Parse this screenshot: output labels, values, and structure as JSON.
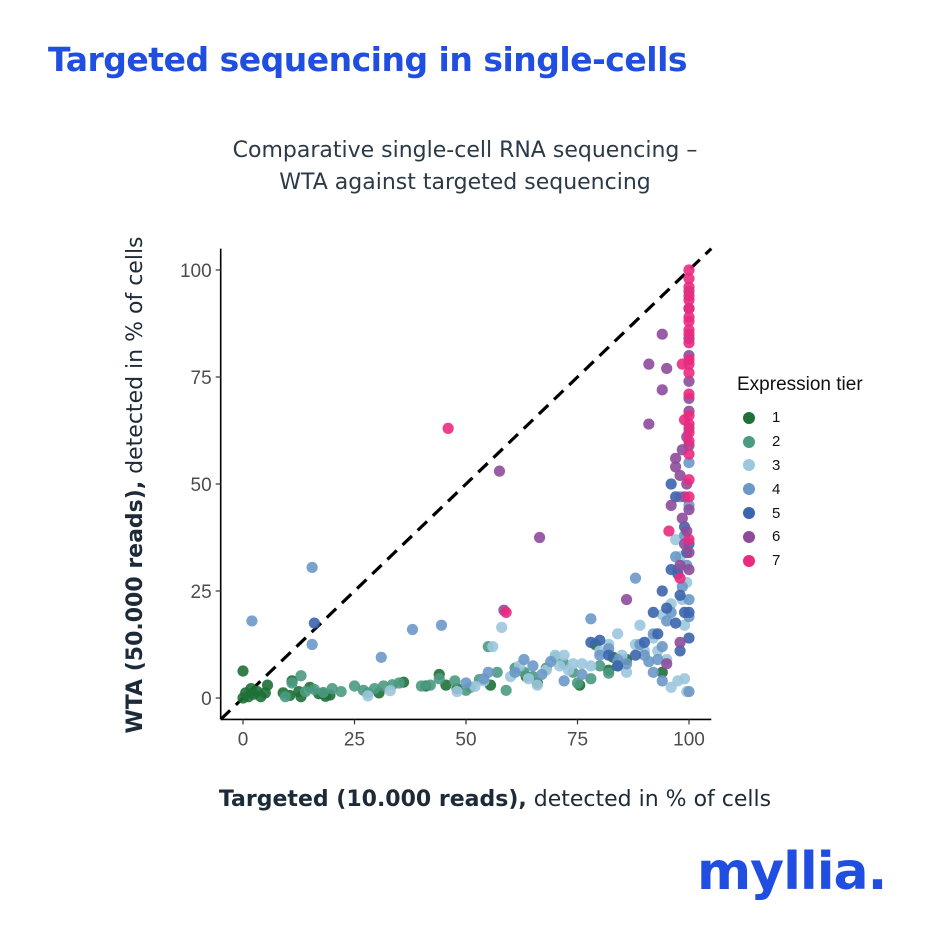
{
  "page": {
    "title": "Targeted sequencing in single-cells",
    "logo_text": "myllia."
  },
  "chart_data": {
    "type": "scatter",
    "title": "Comparative single-cell RNA sequencing –",
    "subtitle": "WTA against targeted sequencing",
    "xlabel_bold": "Targeted (10.000 reads),",
    "xlabel_rest": " detected in % of cells",
    "ylabel_bold": "WTA (50.000 reads),",
    "ylabel_rest": " detected in % of cells",
    "xlim": [
      -5,
      105
    ],
    "ylim": [
      -5,
      105
    ],
    "xticks": [
      0,
      25,
      50,
      75,
      100
    ],
    "yticks": [
      0,
      25,
      50,
      75,
      100
    ],
    "reference_line": "y = x (dashed)",
    "grid": false,
    "legend_title": "Expression tier",
    "legend_position": "right",
    "series": [
      {
        "name": "1",
        "color": "#1e7036",
        "points": [
          [
            0,
            0
          ],
          [
            0,
            6.3
          ],
          [
            0.6,
            1.2
          ],
          [
            1.2,
            0.3
          ],
          [
            1.8,
            2.2
          ],
          [
            2.4,
            0.9
          ],
          [
            3.2,
            1.5
          ],
          [
            4,
            0.3
          ],
          [
            5,
            1.2
          ],
          [
            5.5,
            3
          ],
          [
            9,
            1.2
          ],
          [
            10.5,
            0.6
          ],
          [
            11,
            4
          ],
          [
            12.5,
            1.5
          ],
          [
            13,
            0.3
          ],
          [
            15,
            2.5
          ],
          [
            17,
            1
          ],
          [
            18,
            1
          ],
          [
            18.5,
            0.4
          ],
          [
            19.5,
            0.7
          ],
          [
            30.5,
            1.2
          ],
          [
            36,
            3.7
          ],
          [
            41,
            2.8
          ],
          [
            44,
            5.5
          ],
          [
            45.5,
            3
          ],
          [
            48,
            2.2
          ],
          [
            55.5,
            3
          ],
          [
            63.5,
            5
          ],
          [
            66,
            3.5
          ],
          [
            75.5,
            3
          ],
          [
            79,
            12.5
          ],
          [
            82,
            6.5
          ],
          [
            83,
            9.5
          ],
          [
            86,
            9
          ],
          [
            94,
            6
          ]
        ]
      },
      {
        "name": "2",
        "color": "#4b9a82",
        "points": [
          [
            9.5,
            0.3
          ],
          [
            11,
            3.5
          ],
          [
            13,
            5.2
          ],
          [
            14,
            1.5
          ],
          [
            16,
            2
          ],
          [
            18,
            1.3
          ],
          [
            20,
            2.2
          ],
          [
            22,
            1.5
          ],
          [
            25,
            2.8
          ],
          [
            27,
            1.8
          ],
          [
            28,
            1.2
          ],
          [
            29.5,
            2.2
          ],
          [
            31.5,
            2.8
          ],
          [
            33.5,
            3.1
          ],
          [
            35,
            3.5
          ],
          [
            40,
            2.8
          ],
          [
            42,
            3
          ],
          [
            44,
            4.5
          ],
          [
            47.5,
            4
          ],
          [
            50,
            1.8
          ],
          [
            51,
            2.5
          ],
          [
            53,
            4.3
          ],
          [
            55,
            12
          ],
          [
            57,
            6
          ],
          [
            59,
            1.8
          ],
          [
            61,
            7
          ],
          [
            63,
            6
          ],
          [
            65,
            5
          ],
          [
            68,
            7
          ],
          [
            70,
            9.5
          ],
          [
            72,
            8
          ],
          [
            74,
            6
          ],
          [
            75,
            3.5
          ],
          [
            78,
            4.5
          ],
          [
            80,
            7.5
          ],
          [
            82,
            5.8
          ],
          [
            84,
            7.5
          ]
        ]
      },
      {
        "name": "3",
        "color": "#9cc7de",
        "points": [
          [
            28,
            0.5
          ],
          [
            33,
            1.7
          ],
          [
            48,
            1.5
          ],
          [
            52,
            2.7
          ],
          [
            54,
            4
          ],
          [
            56,
            12
          ],
          [
            58,
            16.5
          ],
          [
            60,
            5
          ],
          [
            62,
            7.5
          ],
          [
            64,
            4.5
          ],
          [
            66,
            3
          ],
          [
            68,
            6.5
          ],
          [
            70,
            10
          ],
          [
            71,
            7.5
          ],
          [
            72,
            10
          ],
          [
            73,
            6.5
          ],
          [
            74,
            8
          ],
          [
            76,
            8
          ],
          [
            78,
            7.5
          ],
          [
            80,
            11
          ],
          [
            82,
            12.5
          ],
          [
            84,
            15
          ],
          [
            85,
            10
          ],
          [
            86,
            6
          ],
          [
            88,
            12.5
          ],
          [
            89,
            17
          ],
          [
            90,
            11
          ],
          [
            92,
            14
          ],
          [
            93,
            11
          ],
          [
            94,
            19.5
          ],
          [
            95,
            9
          ],
          [
            96,
            22
          ],
          [
            97,
            37
          ],
          [
            98,
            33
          ],
          [
            98.5,
            23
          ],
          [
            99,
            17
          ],
          [
            99.5,
            27
          ],
          [
            99,
            4.5
          ],
          [
            97.5,
            4
          ],
          [
            96,
            2.5
          ],
          [
            99.5,
            1.5
          ]
        ]
      },
      {
        "name": "4",
        "color": "#6b98c7",
        "points": [
          [
            2,
            18
          ],
          [
            15.5,
            30.5
          ],
          [
            15.5,
            12.5
          ],
          [
            31,
            9.5
          ],
          [
            38,
            16
          ],
          [
            44.5,
            17
          ],
          [
            50,
            3.5
          ],
          [
            54,
            4.5
          ],
          [
            55,
            6
          ],
          [
            61,
            6
          ],
          [
            63,
            9
          ],
          [
            65,
            7.5
          ],
          [
            67,
            5.5
          ],
          [
            69,
            8.5
          ],
          [
            72,
            4
          ],
          [
            76,
            5.5
          ],
          [
            78,
            18.5
          ],
          [
            80,
            10
          ],
          [
            82,
            11.5
          ],
          [
            84,
            9
          ],
          [
            86,
            8
          ],
          [
            88,
            28
          ],
          [
            89,
            12.5
          ],
          [
            90,
            10
          ],
          [
            91,
            8.5
          ],
          [
            92,
            15
          ],
          [
            93,
            9
          ],
          [
            94,
            12
          ],
          [
            95,
            18
          ],
          [
            96,
            20
          ],
          [
            97,
            33
          ],
          [
            97.5,
            30
          ],
          [
            98,
            47
          ],
          [
            98.5,
            26
          ],
          [
            99,
            38
          ],
          [
            99.5,
            31
          ],
          [
            100,
            45
          ],
          [
            100,
            55
          ],
          [
            100,
            19
          ],
          [
            100,
            23
          ],
          [
            100,
            1.5
          ],
          [
            94,
            4
          ],
          [
            92,
            6
          ]
        ]
      },
      {
        "name": "5",
        "color": "#3c65ad",
        "points": [
          [
            16,
            17.5
          ],
          [
            78,
            13
          ],
          [
            80,
            13.5
          ],
          [
            82,
            10
          ],
          [
            84,
            7.5
          ],
          [
            88,
            10
          ],
          [
            90,
            13
          ],
          [
            92,
            20
          ],
          [
            93,
            15
          ],
          [
            94,
            25
          ],
          [
            95,
            21
          ],
          [
            96,
            30
          ],
          [
            97,
            17.5
          ],
          [
            97.5,
            29
          ],
          [
            98,
            11
          ],
          [
            98,
            24
          ],
          [
            99,
            20
          ],
          [
            99,
            40
          ],
          [
            99.5,
            34
          ],
          [
            100,
            20
          ],
          [
            100,
            14
          ],
          [
            100,
            36
          ],
          [
            97,
            47
          ],
          [
            96,
            50
          ]
        ]
      },
      {
        "name": "6",
        "color": "#8e4b9c",
        "points": [
          [
            57.5,
            53
          ],
          [
            58.5,
            20.5
          ],
          [
            66.5,
            37.5
          ],
          [
            86,
            23
          ],
          [
            91,
            78
          ],
          [
            91,
            64
          ],
          [
            94,
            72
          ],
          [
            94,
            85
          ],
          [
            95,
            77
          ],
          [
            96,
            45
          ],
          [
            97,
            54
          ],
          [
            97,
            56
          ],
          [
            98,
            31
          ],
          [
            98,
            52
          ],
          [
            98.5,
            42
          ],
          [
            98.5,
            58
          ],
          [
            99,
            36
          ],
          [
            99,
            47
          ],
          [
            99.5,
            39
          ],
          [
            99.5,
            50
          ],
          [
            99.5,
            61
          ],
          [
            100,
            30
          ],
          [
            100,
            34
          ],
          [
            100,
            44
          ],
          [
            100,
            59
          ],
          [
            100,
            63
          ],
          [
            100,
            67
          ],
          [
            100,
            70
          ],
          [
            100,
            74
          ],
          [
            100,
            80
          ],
          [
            100,
            91
          ],
          [
            100,
            95
          ],
          [
            100,
            84
          ],
          [
            98,
            13
          ],
          [
            95,
            8
          ]
        ]
      },
      {
        "name": "7",
        "color": "#ea2a80",
        "points": [
          [
            46,
            63
          ],
          [
            59,
            20
          ],
          [
            95.5,
            39
          ],
          [
            98,
            28
          ],
          [
            98.5,
            78
          ],
          [
            99,
            65
          ],
          [
            100,
            100
          ],
          [
            100,
            98
          ],
          [
            100,
            96
          ],
          [
            100,
            94
          ],
          [
            100,
            93
          ],
          [
            100,
            91
          ],
          [
            100,
            89
          ],
          [
            100,
            88
          ],
          [
            100,
            86
          ],
          [
            100,
            85
          ],
          [
            100,
            83
          ],
          [
            100,
            79
          ],
          [
            100,
            78
          ],
          [
            100,
            76
          ],
          [
            100,
            71
          ],
          [
            100,
            66
          ],
          [
            100,
            64
          ],
          [
            100,
            62
          ],
          [
            100,
            60
          ],
          [
            100,
            57
          ],
          [
            100,
            37
          ],
          [
            100,
            51
          ],
          [
            100,
            47
          ]
        ]
      }
    ]
  }
}
